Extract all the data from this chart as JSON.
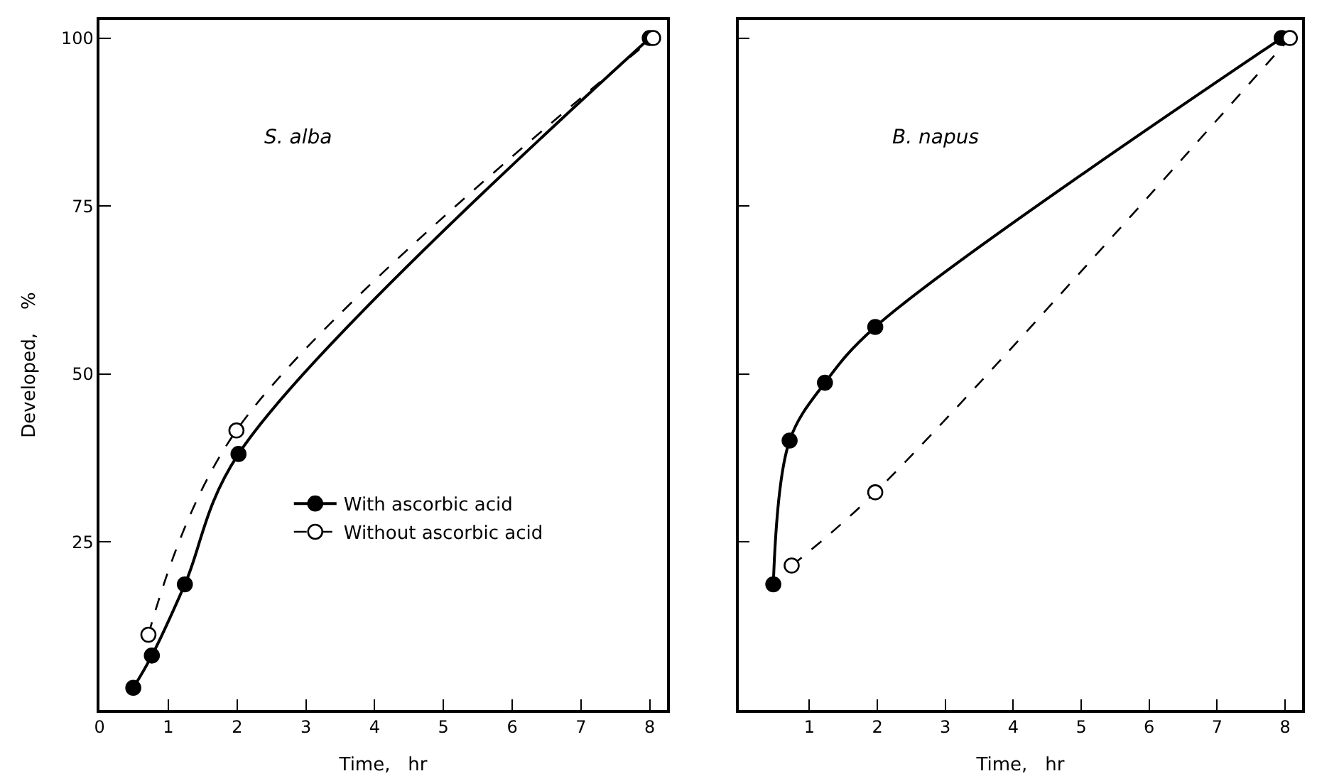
{
  "chart_data": [
    {
      "type": "line",
      "title": "S. alba",
      "xlabel": "Time,   hr",
      "ylabel": "Developed,    %",
      "xlim": [
        0,
        8.25
      ],
      "ylim": [
        0,
        102.7
      ],
      "xticks": [
        0,
        1,
        2,
        3,
        4,
        5,
        6,
        7,
        8
      ],
      "yticks": [
        {
          "value": 0,
          "label": null
        },
        25,
        50,
        75,
        100
      ],
      "legend": "center",
      "series": [
        {
          "name": "With ascorbic acid",
          "color": "#000000",
          "marker": "circle",
          "line_style": "solid",
          "x": [
            0.49,
            0.76,
            1.24,
            2.02,
            8.0
          ],
          "values": [
            3.3,
            8.1,
            18.7,
            38.1,
            100
          ]
        },
        {
          "name": "Without ascorbic acid",
          "color": "#000000",
          "marker": "circle-open",
          "line_style": "dashed",
          "x": [
            0.71,
            1.99,
            8.05
          ],
          "values": [
            11.2,
            41.6,
            100
          ]
        }
      ]
    },
    {
      "type": "line",
      "title": "B. napus",
      "xlabel": "Time,   hr",
      "xlim": [
        -0.04,
        8.25
      ],
      "ylim": [
        0,
        102.7
      ],
      "xticks": [
        1,
        2,
        3,
        4,
        5,
        6,
        7,
        8
      ],
      "yticks": [
        25,
        50,
        75,
        100
      ],
      "legend": false,
      "tick_labels": "x",
      "series": [
        {
          "color": "#000000",
          "marker": "circle",
          "line_style": "solid",
          "x": [
            0.47,
            0.71,
            1.23,
            1.97,
            7.95
          ],
          "values": [
            18.7,
            40.1,
            48.7,
            57.0,
            100
          ]
        },
        {
          "color": "#000000",
          "marker": "circle-open",
          "line_style": "dashed",
          "x": [
            0.74,
            1.97,
            8.07
          ],
          "values": [
            21.5,
            32.4,
            100
          ]
        }
      ]
    }
  ]
}
